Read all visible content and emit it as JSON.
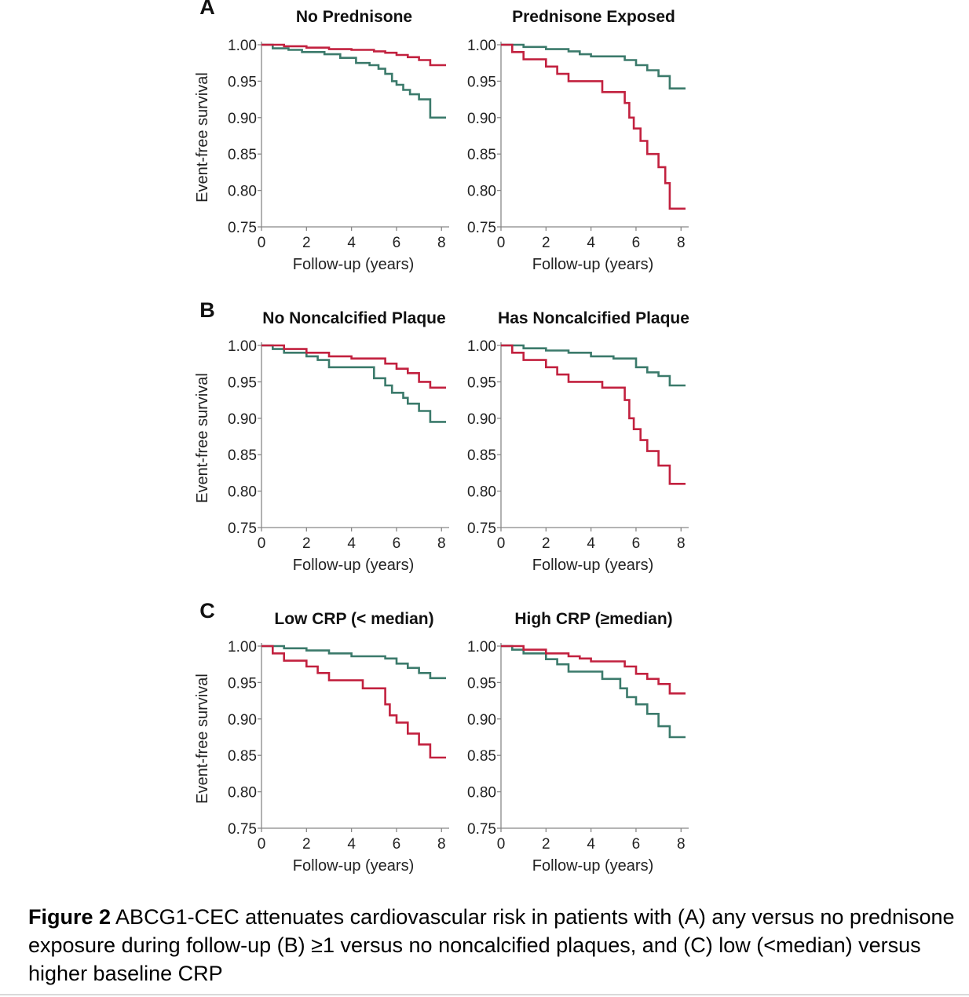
{
  "y_axis_label": "Event-free survival",
  "x_axis_label": "Follow-up (years)",
  "caption": {
    "label": "Figure 2",
    "text": "ABCG1-CEC attenuates cardiovascular risk in patients with (A) any versus no prednisone exposure during follow-up (B) ≥1 versus no noncalcified plaques, and (C) low (<median) versus higher baseline CRP"
  },
  "colors": {
    "red_series": "#c2213f",
    "teal_series": "#3b7a6b",
    "axis": "#888888"
  },
  "chart_data": [
    {
      "type": "line",
      "panel_label": "A",
      "title": "No Prednisone",
      "xlabel": "Follow-up (years)",
      "ylabel": "Event-free survival",
      "xlim": [
        0,
        8.2
      ],
      "ylim": [
        0.75,
        1.0
      ],
      "xticks": [
        "0",
        "2",
        "4",
        "6",
        "8"
      ],
      "yticks": [
        "0.75",
        "0.80",
        "0.85",
        "0.90",
        "0.95",
        "1.00"
      ],
      "series": [
        {
          "name": "teal",
          "color": "#3b7a6b",
          "x": [
            0,
            0.5,
            1.2,
            1.8,
            2.8,
            3.5,
            4.2,
            4.8,
            5.2,
            5.5,
            5.8,
            6.0,
            6.3,
            6.6,
            7.0,
            7.5,
            8.2
          ],
          "y": [
            1.0,
            0.995,
            0.993,
            0.99,
            0.987,
            0.982,
            0.975,
            0.972,
            0.967,
            0.96,
            0.95,
            0.945,
            0.938,
            0.932,
            0.925,
            0.9,
            0.9
          ]
        },
        {
          "name": "red",
          "color": "#c2213f",
          "x": [
            0,
            1.0,
            2.0,
            3.0,
            4.0,
            5.0,
            5.5,
            6.0,
            6.5,
            7.0,
            7.5,
            8.2
          ],
          "y": [
            1.0,
            0.998,
            0.996,
            0.994,
            0.993,
            0.991,
            0.989,
            0.986,
            0.983,
            0.979,
            0.972,
            0.972
          ]
        }
      ]
    },
    {
      "type": "line",
      "panel_label": "",
      "title": "Prednisone Exposed",
      "xlabel": "Follow-up (years)",
      "ylabel": "",
      "xlim": [
        0,
        8.2
      ],
      "ylim": [
        0.75,
        1.0
      ],
      "xticks": [
        "0",
        "2",
        "4",
        "6",
        "8"
      ],
      "yticks": [
        "0.75",
        "0.80",
        "0.85",
        "0.90",
        "0.95",
        "1.00"
      ],
      "series": [
        {
          "name": "teal",
          "color": "#3b7a6b",
          "x": [
            0,
            1.0,
            2.0,
            3.0,
            3.5,
            4.0,
            5.5,
            6.0,
            6.5,
            7.0,
            7.5,
            8.2
          ],
          "y": [
            1.0,
            0.997,
            0.994,
            0.991,
            0.987,
            0.984,
            0.979,
            0.972,
            0.965,
            0.957,
            0.94,
            0.94
          ]
        },
        {
          "name": "red",
          "color": "#c2213f",
          "x": [
            0,
            0.5,
            1.0,
            2.0,
            2.5,
            3.0,
            4.5,
            5.5,
            5.7,
            5.9,
            6.2,
            6.5,
            7.0,
            7.3,
            7.5,
            8.2
          ],
          "y": [
            1.0,
            0.99,
            0.98,
            0.97,
            0.96,
            0.95,
            0.935,
            0.92,
            0.9,
            0.885,
            0.868,
            0.85,
            0.832,
            0.81,
            0.775,
            0.775
          ]
        }
      ]
    },
    {
      "type": "line",
      "panel_label": "B",
      "title": "No Noncalcified Plaque",
      "xlabel": "Follow-up (years)",
      "ylabel": "Event-free survival",
      "xlim": [
        0,
        8.2
      ],
      "ylim": [
        0.75,
        1.0
      ],
      "xticks": [
        "0",
        "2",
        "4",
        "6",
        "8"
      ],
      "yticks": [
        "0.75",
        "0.80",
        "0.85",
        "0.90",
        "0.95",
        "1.00"
      ],
      "series": [
        {
          "name": "teal",
          "color": "#3b7a6b",
          "x": [
            0,
            0.5,
            1.0,
            2.0,
            2.5,
            3.0,
            5.0,
            5.5,
            5.8,
            6.3,
            6.5,
            7.0,
            7.5,
            8.2
          ],
          "y": [
            1.0,
            0.995,
            0.99,
            0.985,
            0.98,
            0.97,
            0.955,
            0.945,
            0.935,
            0.928,
            0.92,
            0.91,
            0.895,
            0.895
          ]
        },
        {
          "name": "red",
          "color": "#c2213f",
          "x": [
            0,
            1.0,
            2.0,
            3.0,
            4.0,
            5.5,
            6.0,
            6.5,
            7.0,
            7.5,
            8.2
          ],
          "y": [
            1.0,
            0.995,
            0.99,
            0.985,
            0.982,
            0.975,
            0.968,
            0.962,
            0.95,
            0.942,
            0.942
          ]
        }
      ]
    },
    {
      "type": "line",
      "panel_label": "",
      "title": "Has Noncalcified Plaque",
      "xlabel": "Follow-up (years)",
      "ylabel": "",
      "xlim": [
        0,
        8.2
      ],
      "ylim": [
        0.75,
        1.0
      ],
      "xticks": [
        "0",
        "2",
        "4",
        "6",
        "8"
      ],
      "yticks": [
        "0.75",
        "0.80",
        "0.85",
        "0.90",
        "0.95",
        "1.00"
      ],
      "series": [
        {
          "name": "teal",
          "color": "#3b7a6b",
          "x": [
            0,
            1.0,
            2.0,
            3.0,
            4.0,
            5.0,
            6.0,
            6.5,
            7.0,
            7.5,
            8.2
          ],
          "y": [
            1.0,
            0.996,
            0.993,
            0.99,
            0.985,
            0.982,
            0.97,
            0.963,
            0.958,
            0.945,
            0.945
          ]
        },
        {
          "name": "red",
          "color": "#c2213f",
          "x": [
            0,
            0.5,
            1.0,
            2.0,
            2.5,
            3.0,
            4.5,
            5.5,
            5.7,
            5.9,
            6.2,
            6.5,
            7.0,
            7.5,
            8.2
          ],
          "y": [
            1.0,
            0.99,
            0.98,
            0.97,
            0.96,
            0.95,
            0.942,
            0.925,
            0.9,
            0.885,
            0.87,
            0.855,
            0.835,
            0.81,
            0.81
          ]
        }
      ]
    },
    {
      "type": "line",
      "panel_label": "C",
      "title": "Low CRP (< median)",
      "xlabel": "Follow-up (years)",
      "ylabel": "Event-free survival",
      "xlim": [
        0,
        8.2
      ],
      "ylim": [
        0.75,
        1.0
      ],
      "xticks": [
        "0",
        "2",
        "4",
        "6",
        "8"
      ],
      "yticks": [
        "0.75",
        "0.80",
        "0.85",
        "0.90",
        "0.95",
        "1.00"
      ],
      "series": [
        {
          "name": "teal",
          "color": "#3b7a6b",
          "x": [
            0,
            1.0,
            2.0,
            3.0,
            4.0,
            5.5,
            6.0,
            6.5,
            7.0,
            7.5,
            8.2
          ],
          "y": [
            1.0,
            0.997,
            0.994,
            0.99,
            0.986,
            0.983,
            0.976,
            0.97,
            0.963,
            0.956,
            0.956
          ]
        },
        {
          "name": "red",
          "color": "#c2213f",
          "x": [
            0,
            0.5,
            1.0,
            2.0,
            2.5,
            3.0,
            4.5,
            5.5,
            5.7,
            6.0,
            6.5,
            7.0,
            7.5,
            8.2
          ],
          "y": [
            1.0,
            0.99,
            0.98,
            0.972,
            0.963,
            0.953,
            0.942,
            0.92,
            0.905,
            0.895,
            0.88,
            0.865,
            0.847,
            0.847
          ]
        }
      ]
    },
    {
      "type": "line",
      "panel_label": "",
      "title": "High CRP (≥median)",
      "xlabel": "Follow-up (years)",
      "ylabel": "",
      "xlim": [
        0,
        8.2
      ],
      "ylim": [
        0.75,
        1.0
      ],
      "xticks": [
        "0",
        "2",
        "4",
        "6",
        "8"
      ],
      "yticks": [
        "0.75",
        "0.80",
        "0.85",
        "0.90",
        "0.95",
        "1.00"
      ],
      "series": [
        {
          "name": "teal",
          "color": "#3b7a6b",
          "x": [
            0,
            0.5,
            1.0,
            2.0,
            2.5,
            3.0,
            4.5,
            5.3,
            5.6,
            6.0,
            6.5,
            7.0,
            7.5,
            8.2
          ],
          "y": [
            1.0,
            0.995,
            0.99,
            0.982,
            0.975,
            0.965,
            0.955,
            0.942,
            0.93,
            0.92,
            0.907,
            0.89,
            0.875,
            0.875
          ]
        },
        {
          "name": "red",
          "color": "#c2213f",
          "x": [
            0,
            1.0,
            2.0,
            3.0,
            3.5,
            4.0,
            5.5,
            6.0,
            6.5,
            7.0,
            7.5,
            8.2
          ],
          "y": [
            1.0,
            0.995,
            0.99,
            0.986,
            0.983,
            0.979,
            0.972,
            0.962,
            0.955,
            0.948,
            0.935,
            0.935
          ]
        }
      ]
    }
  ]
}
